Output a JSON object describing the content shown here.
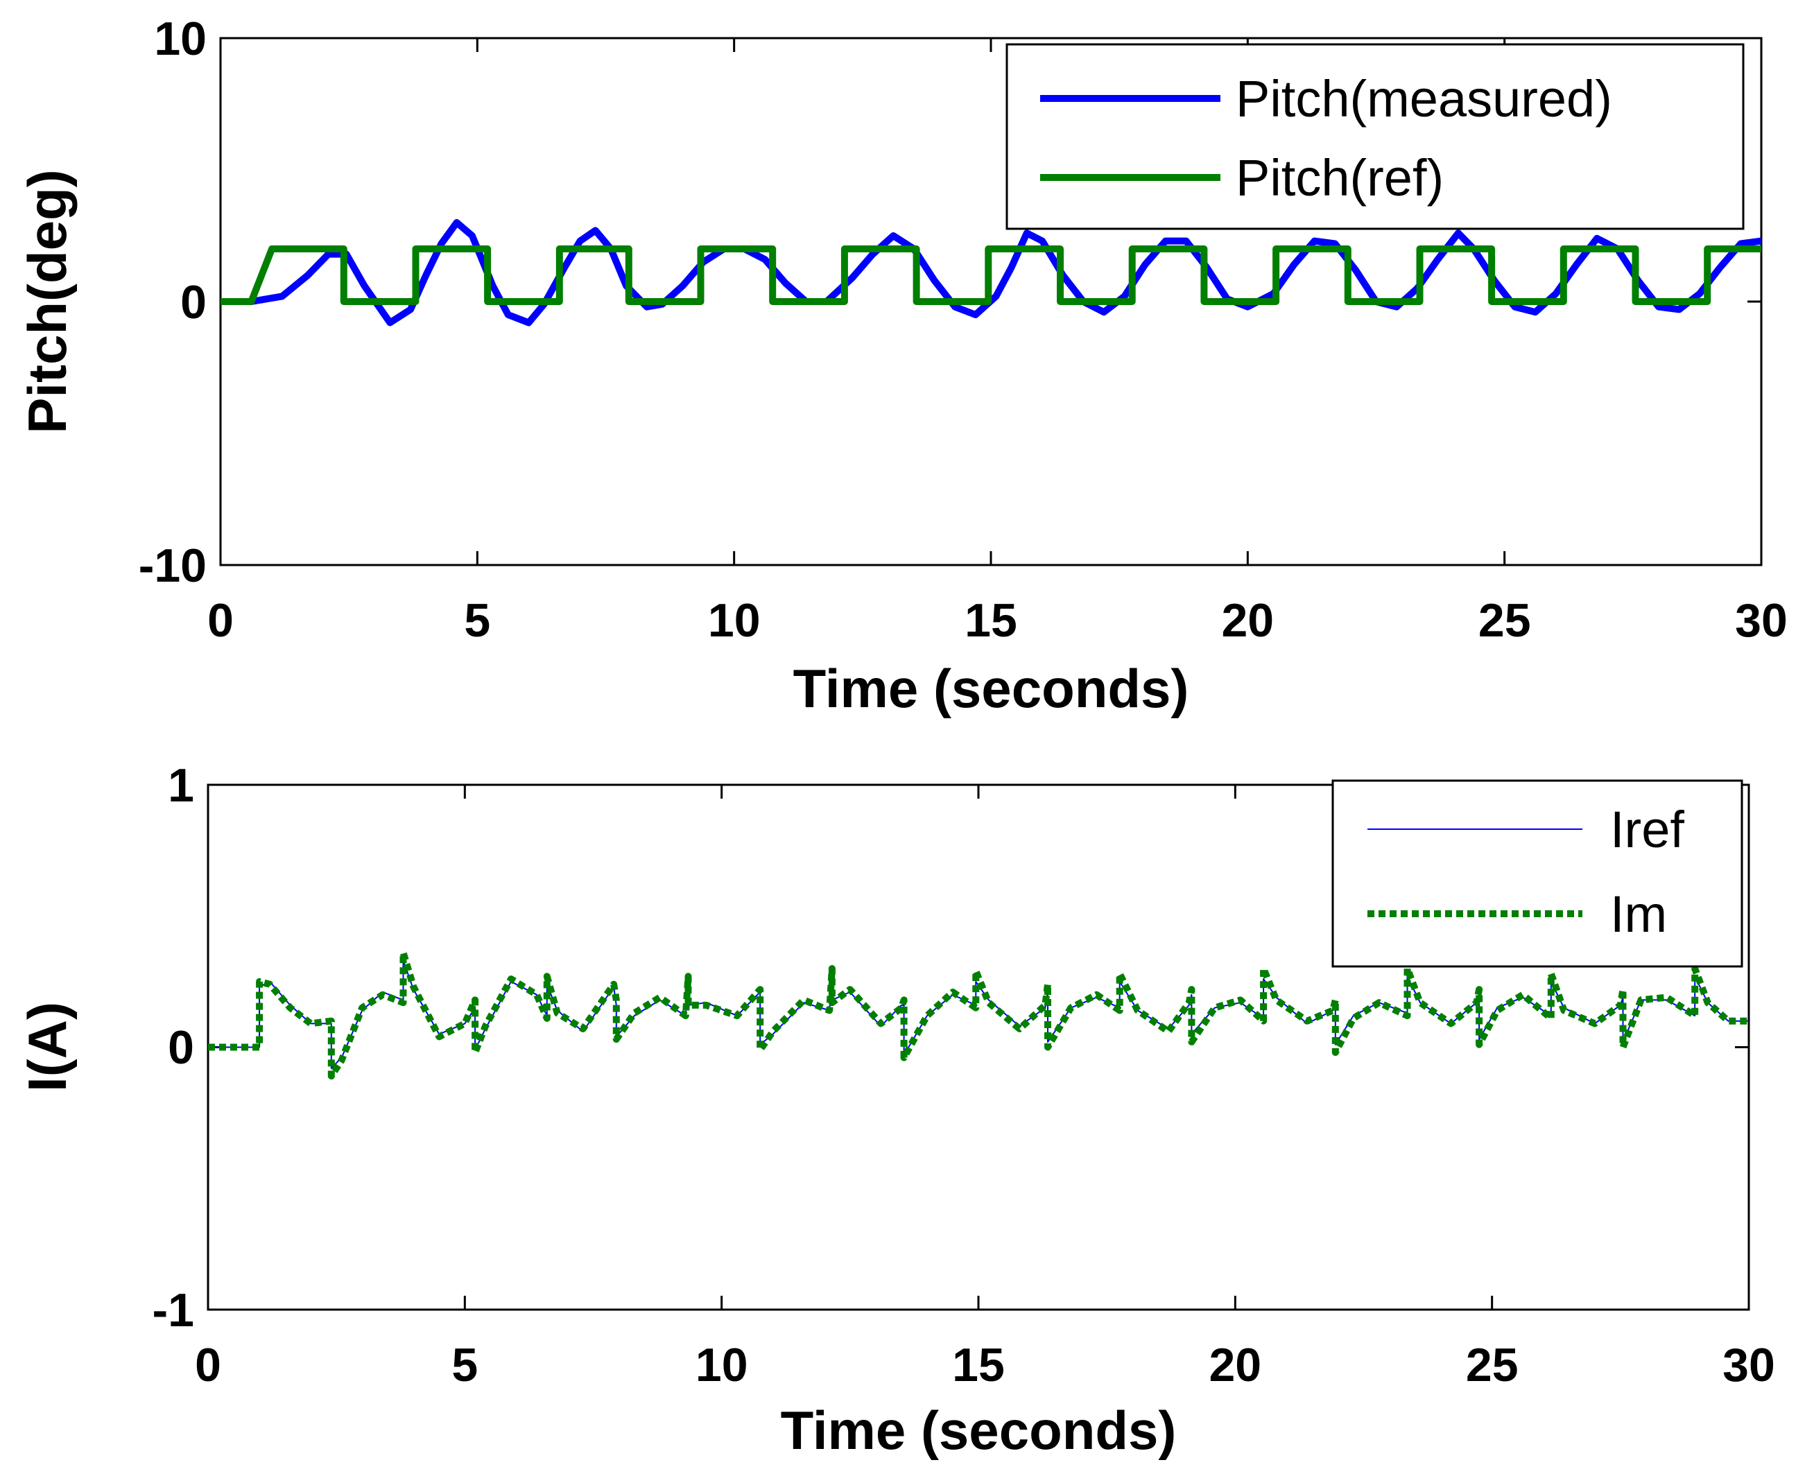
{
  "chart_data": [
    {
      "type": "line",
      "title": "",
      "xlabel": "Time (seconds)",
      "ylabel": "Pitch(deg)",
      "xlim": [
        0,
        30
      ],
      "ylim": [
        -10,
        10
      ],
      "xticks": [
        0,
        5,
        10,
        15,
        20,
        25,
        30
      ],
      "xtick_labels": [
        "0",
        "5",
        "10",
        "15",
        "20",
        "25",
        "30"
      ],
      "yticks": [
        -10,
        0,
        10
      ],
      "ytick_labels": [
        "-10",
        "0",
        "10"
      ],
      "grid": false,
      "legend_position": "top-right",
      "series": [
        {
          "name": "Pitch(measured)",
          "color": "#0000ff",
          "style": "solid",
          "x": [
            0,
            0.6,
            1.2,
            1.7,
            2.1,
            2.45,
            2.8,
            3.3,
            3.7,
            4.0,
            4.3,
            4.6,
            4.9,
            5.3,
            5.6,
            6.0,
            6.3,
            6.7,
            7.0,
            7.3,
            7.6,
            7.9,
            8.3,
            8.6,
            9.0,
            9.4,
            9.8,
            10.2,
            10.6,
            11.0,
            11.4,
            11.8,
            12.3,
            12.7,
            13.1,
            13.5,
            13.9,
            14.3,
            14.7,
            15.1,
            15.4,
            15.7,
            16.0,
            16.4,
            16.8,
            17.2,
            17.6,
            18.0,
            18.4,
            18.8,
            19.2,
            19.6,
            20.0,
            20.5,
            20.9,
            21.3,
            21.7,
            22.1,
            22.5,
            22.9,
            23.3,
            23.7,
            24.1,
            24.4,
            24.8,
            25.2,
            25.6,
            26.0,
            26.4,
            26.8,
            27.2,
            27.6,
            28.0,
            28.4,
            28.8,
            29.2,
            29.6,
            30
          ],
          "values": [
            0,
            0,
            0.2,
            1.0,
            1.8,
            1.8,
            0.6,
            -0.8,
            -0.3,
            1.0,
            2.2,
            3.0,
            2.5,
            0.6,
            -0.5,
            -0.8,
            -0.1,
            1.3,
            2.3,
            2.7,
            2.0,
            0.6,
            -0.2,
            -0.1,
            0.6,
            1.5,
            2.0,
            2.0,
            1.6,
            0.7,
            0.0,
            0.0,
            0.9,
            1.8,
            2.5,
            2.0,
            0.8,
            -0.2,
            -0.5,
            0.2,
            1.3,
            2.6,
            2.3,
            1.0,
            0.0,
            -0.4,
            0.2,
            1.4,
            2.3,
            2.3,
            1.3,
            0.1,
            -0.2,
            0.3,
            1.4,
            2.3,
            2.2,
            1.2,
            0.0,
            -0.2,
            0.5,
            1.6,
            2.6,
            2.0,
            0.8,
            -0.2,
            -0.4,
            0.3,
            1.4,
            2.4,
            2.0,
            0.8,
            -0.2,
            -0.3,
            0.3,
            1.3,
            2.2,
            2.3
          ]
        },
        {
          "name": "Pitch(ref)",
          "color": "#007f00",
          "style": "solid",
          "x": [
            0,
            0.6,
            1.0,
            2.4,
            2.4,
            3.8,
            3.8,
            5.2,
            5.2,
            6.6,
            6.6,
            7.95,
            7.95,
            9.35,
            9.35,
            10.75,
            10.75,
            12.15,
            12.15,
            13.55,
            13.55,
            14.95,
            14.95,
            16.35,
            16.35,
            17.75,
            17.75,
            19.15,
            19.15,
            20.55,
            20.55,
            21.95,
            21.95,
            23.35,
            23.35,
            24.75,
            24.75,
            26.15,
            26.15,
            27.55,
            27.55,
            28.95,
            28.95,
            30
          ],
          "values": [
            0,
            0,
            2,
            2,
            0,
            0,
            2,
            2,
            0,
            0,
            2,
            2,
            0,
            0,
            2,
            2,
            0,
            0,
            2,
            2,
            0,
            0,
            2,
            2,
            0,
            0,
            2,
            2,
            0,
            0,
            2,
            2,
            0,
            0,
            2,
            2,
            0,
            0,
            2,
            2,
            0,
            0,
            2,
            2
          ]
        }
      ]
    },
    {
      "type": "line",
      "title": "",
      "xlabel": "Time (seconds)",
      "ylabel": "I(A)",
      "xlim": [
        0,
        30
      ],
      "ylim": [
        -1,
        1
      ],
      "xticks": [
        0,
        5,
        10,
        15,
        20,
        25,
        30
      ],
      "xtick_labels": [
        "0",
        "5",
        "10",
        "15",
        "20",
        "25",
        "30"
      ],
      "yticks": [
        -1,
        0,
        1
      ],
      "ytick_labels": [
        "-1",
        "0",
        "1"
      ],
      "grid": false,
      "legend_position": "top-right",
      "series": [
        {
          "name": "Iref",
          "color": "#0000ff",
          "style": "solid",
          "x": [
            0,
            1.0,
            1.0,
            1.2,
            1.6,
            2.0,
            2.4,
            2.4,
            2.6,
            3.0,
            3.4,
            3.8,
            3.8,
            4.0,
            4.5,
            5.0,
            5.2,
            5.2,
            5.4,
            5.9,
            6.4,
            6.6,
            6.6,
            6.8,
            7.3,
            7.9,
            7.95,
            7.95,
            8.3,
            8.8,
            9.3,
            9.35,
            9.35,
            9.7,
            10.3,
            10.75,
            10.75,
            11.0,
            11.6,
            12.1,
            12.15,
            12.15,
            12.5,
            13.1,
            13.5,
            13.55,
            13.55,
            14.0,
            14.5,
            14.95,
            14.95,
            15.2,
            15.8,
            16.3,
            16.35,
            16.35,
            16.8,
            17.3,
            17.75,
            17.75,
            18.1,
            18.7,
            19.1,
            19.15,
            19.15,
            19.6,
            20.1,
            20.55,
            20.55,
            20.8,
            21.4,
            21.9,
            21.95,
            21.95,
            22.3,
            22.8,
            23.35,
            23.35,
            23.6,
            24.2,
            24.7,
            24.75,
            24.75,
            25.1,
            25.6,
            26.15,
            26.15,
            26.4,
            27.0,
            27.5,
            27.55,
            27.55,
            27.9,
            28.4,
            28.95,
            28.95,
            29.2,
            29.6,
            30
          ],
          "values": [
            0,
            0,
            0.23,
            0.25,
            0.16,
            0.09,
            0.09,
            -0.08,
            -0.04,
            0.14,
            0.21,
            0.18,
            0.33,
            0.22,
            0.05,
            0.09,
            0.15,
            -0.01,
            0.07,
            0.25,
            0.2,
            0.12,
            0.24,
            0.14,
            0.06,
            0.23,
            0.16,
            0.04,
            0.12,
            0.18,
            0.12,
            0.24,
            0.16,
            0.17,
            0.12,
            0.21,
            0.01,
            0.05,
            0.17,
            0.14,
            0.27,
            0.18,
            0.21,
            0.08,
            0.16,
            0.16,
            -0.03,
            0.12,
            0.2,
            0.16,
            0.25,
            0.18,
            0.08,
            0.15,
            0.21,
            0.02,
            0.15,
            0.19,
            0.15,
            0.25,
            0.14,
            0.07,
            0.16,
            0.2,
            0.05,
            0.15,
            0.17,
            0.11,
            0.26,
            0.19,
            0.09,
            0.14,
            0.15,
            0.01,
            0.12,
            0.17,
            0.13,
            0.27,
            0.17,
            0.09,
            0.17,
            0.2,
            0.03,
            0.15,
            0.19,
            0.12,
            0.25,
            0.15,
            0.09,
            0.16,
            0.19,
            0.02,
            0.18,
            0.18,
            0.12,
            0.27,
            0.17,
            0.1,
            0.1
          ]
        },
        {
          "name": "Im",
          "color": "#007f00",
          "style": "dotted",
          "x": [
            0,
            1.0,
            1.0,
            1.2,
            1.6,
            2.0,
            2.4,
            2.4,
            2.6,
            3.0,
            3.4,
            3.8,
            3.8,
            4.0,
            4.5,
            5.0,
            5.2,
            5.2,
            5.4,
            5.9,
            6.4,
            6.6,
            6.6,
            6.8,
            7.3,
            7.9,
            7.95,
            7.95,
            8.3,
            8.8,
            9.3,
            9.35,
            9.35,
            9.7,
            10.3,
            10.75,
            10.75,
            11.0,
            11.6,
            12.1,
            12.15,
            12.15,
            12.5,
            13.1,
            13.5,
            13.55,
            13.55,
            14.0,
            14.5,
            14.95,
            14.95,
            15.2,
            15.8,
            16.3,
            16.35,
            16.35,
            16.8,
            17.3,
            17.75,
            17.75,
            18.1,
            18.7,
            19.1,
            19.15,
            19.15,
            19.6,
            20.1,
            20.55,
            20.55,
            20.8,
            21.4,
            21.9,
            21.95,
            21.95,
            22.3,
            22.8,
            23.35,
            23.35,
            23.6,
            24.2,
            24.7,
            24.75,
            24.75,
            25.1,
            25.6,
            26.15,
            26.15,
            26.4,
            27.0,
            27.5,
            27.55,
            27.55,
            27.9,
            28.4,
            28.95,
            28.95,
            29.2,
            29.6,
            30
          ],
          "values": [
            0,
            0,
            0.25,
            0.24,
            0.15,
            0.09,
            0.1,
            -0.11,
            -0.05,
            0.15,
            0.2,
            0.17,
            0.36,
            0.23,
            0.04,
            0.09,
            0.18,
            -0.02,
            0.08,
            0.26,
            0.2,
            0.11,
            0.27,
            0.13,
            0.07,
            0.24,
            0.18,
            0.03,
            0.13,
            0.19,
            0.12,
            0.27,
            0.16,
            0.16,
            0.12,
            0.22,
            -0.01,
            0.06,
            0.18,
            0.14,
            0.3,
            0.17,
            0.22,
            0.09,
            0.15,
            0.18,
            -0.04,
            0.12,
            0.21,
            0.15,
            0.29,
            0.17,
            0.07,
            0.16,
            0.24,
            0.0,
            0.15,
            0.2,
            0.14,
            0.28,
            0.14,
            0.06,
            0.17,
            0.22,
            0.02,
            0.15,
            0.18,
            0.1,
            0.3,
            0.18,
            0.1,
            0.14,
            0.18,
            -0.02,
            0.11,
            0.17,
            0.12,
            0.3,
            0.17,
            0.09,
            0.17,
            0.22,
            0.01,
            0.14,
            0.2,
            0.11,
            0.28,
            0.14,
            0.09,
            0.16,
            0.22,
            0.0,
            0.18,
            0.19,
            0.12,
            0.3,
            0.17,
            0.1,
            0.1
          ]
        }
      ]
    }
  ]
}
